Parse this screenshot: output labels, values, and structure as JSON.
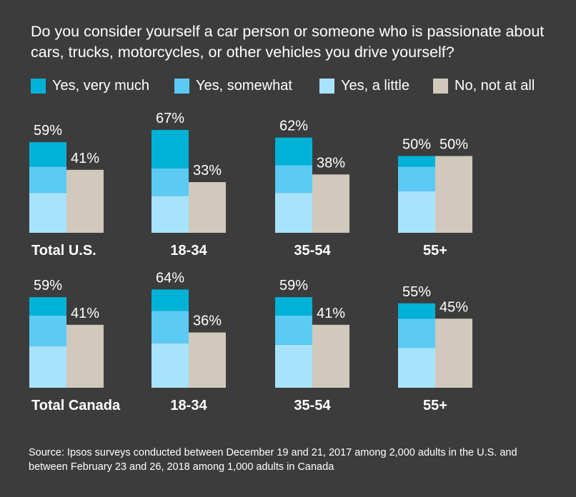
{
  "title": "Do you consider yourself a car person or someone who is passionate about cars, trucks, motorcycles, or other vehicles you drive yourself?",
  "source": "Source: Ipsos surveys conducted between December 19 and 21, 2017 among 2,000 adults in the U.S. and between February 23 and 26, 2018 among 1,000 adults in Canada",
  "colors": {
    "background": "#3c3c3c",
    "very_much": "#00b3d6",
    "somewhat": "#5bcbf5",
    "a_little": "#a8e3fb",
    "not_at_all": "#d0c9bc"
  },
  "legend": [
    {
      "label": "Yes, very much",
      "color": "#00b3d6"
    },
    {
      "label": "Yes, somewhat",
      "color": "#5bcbf5"
    },
    {
      "label": "Yes, a little",
      "color": "#a8e3fb"
    },
    {
      "label": "No, not at all",
      "color": "#d0c9bc"
    }
  ],
  "chart_data": {
    "type": "bar",
    "stacked": true,
    "title": "Do you consider yourself a car person or someone who is passionate about cars, trucks, motorcycles, or other vehicles you drive yourself?",
    "unit": "%",
    "ylim": [
      0,
      100
    ],
    "series": [
      "Yes, very much",
      "Yes, somewhat",
      "Yes, a little",
      "No, not at all"
    ],
    "panels": [
      {
        "country": "U.S.",
        "groups": [
          {
            "label": "Total U.S.",
            "yes_total": "59%",
            "no_total": "41%",
            "very_much": 16,
            "somewhat": 17,
            "a_little": 26,
            "not_at_all": 41
          },
          {
            "label": "18-34",
            "yes_total": "67%",
            "no_total": "33%",
            "very_much": 25,
            "somewhat": 18,
            "a_little": 24,
            "not_at_all": 33
          },
          {
            "label": "35-54",
            "yes_total": "62%",
            "no_total": "38%",
            "very_much": 18,
            "somewhat": 18,
            "a_little": 26,
            "not_at_all": 38
          },
          {
            "label": "55+",
            "yes_total": "50%",
            "no_total": "50%",
            "very_much": 7,
            "somewhat": 16,
            "a_little": 27,
            "not_at_all": 50
          }
        ]
      },
      {
        "country": "Canada",
        "groups": [
          {
            "label": "Total Canada",
            "yes_total": "59%",
            "no_total": "41%",
            "very_much": 12,
            "somewhat": 20,
            "a_little": 27,
            "not_at_all": 41
          },
          {
            "label": "18-34",
            "yes_total": "64%",
            "no_total": "36%",
            "very_much": 14,
            "somewhat": 21,
            "a_little": 29,
            "not_at_all": 36
          },
          {
            "label": "35-54",
            "yes_total": "59%",
            "no_total": "41%",
            "very_much": 12,
            "somewhat": 19,
            "a_little": 28,
            "not_at_all": 41
          },
          {
            "label": "55+",
            "yes_total": "55%",
            "no_total": "45%",
            "very_much": 10,
            "somewhat": 19,
            "a_little": 26,
            "not_at_all": 45
          }
        ]
      }
    ]
  }
}
